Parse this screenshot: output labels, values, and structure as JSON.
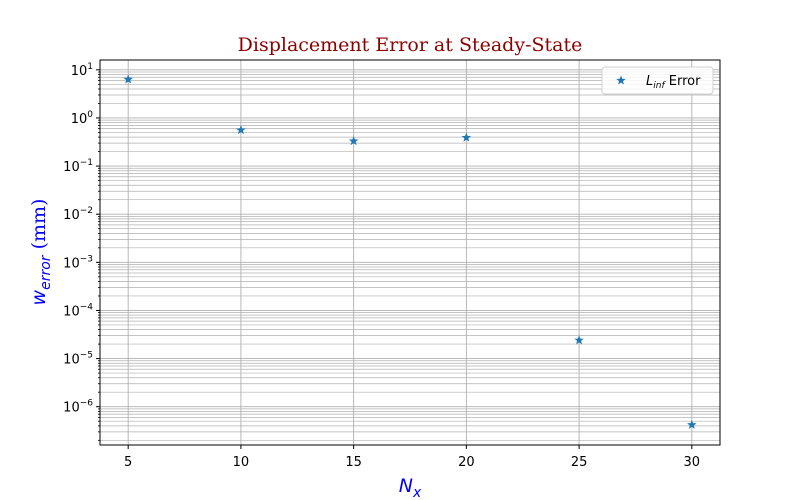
{
  "chart_data": {
    "type": "scatter",
    "title": "Displacement Error at Steady-State",
    "xlabel": {
      "base": "N",
      "sub": "x"
    },
    "ylabel": {
      "base": "w",
      "sub": "error",
      "unit": " (mm)"
    },
    "x_ticks": [
      5,
      10,
      15,
      20,
      25,
      30
    ],
    "x_tick_labels": [
      "5",
      "10",
      "15",
      "20",
      "25",
      "30"
    ],
    "xlim": [
      3.75,
      31.25
    ],
    "y_scale": "log",
    "ylim": [
      1.6e-07,
      16
    ],
    "y_major_ticks": [
      1e-06,
      1e-05,
      0.0001,
      0.001,
      0.01,
      0.1,
      1,
      10
    ],
    "y_tick_labels": [
      {
        "base": "10",
        "exp": "−6"
      },
      {
        "base": "10",
        "exp": "−5"
      },
      {
        "base": "10",
        "exp": "−4"
      },
      {
        "base": "10",
        "exp": "−3"
      },
      {
        "base": "10",
        "exp": "−2"
      },
      {
        "base": "10",
        "exp": "−1"
      },
      {
        "base": "10",
        "exp": "0"
      },
      {
        "base": "10",
        "exp": "1"
      }
    ],
    "grid": true,
    "legend_position": "top-right",
    "series": [
      {
        "name": {
          "base": "L",
          "sub": "inf",
          "suffix": " Error"
        },
        "marker": "star",
        "color": "#1f77b4",
        "x": [
          5,
          10,
          15,
          20,
          25,
          30
        ],
        "y": [
          6.3,
          0.56,
          0.33,
          0.39,
          2.4e-05,
          4.2e-07
        ]
      }
    ],
    "colors": {
      "title": "#8b0000",
      "ylabel": "#0000ff",
      "xlabel": "#0000ff",
      "grid": "#b0b0b0"
    }
  }
}
